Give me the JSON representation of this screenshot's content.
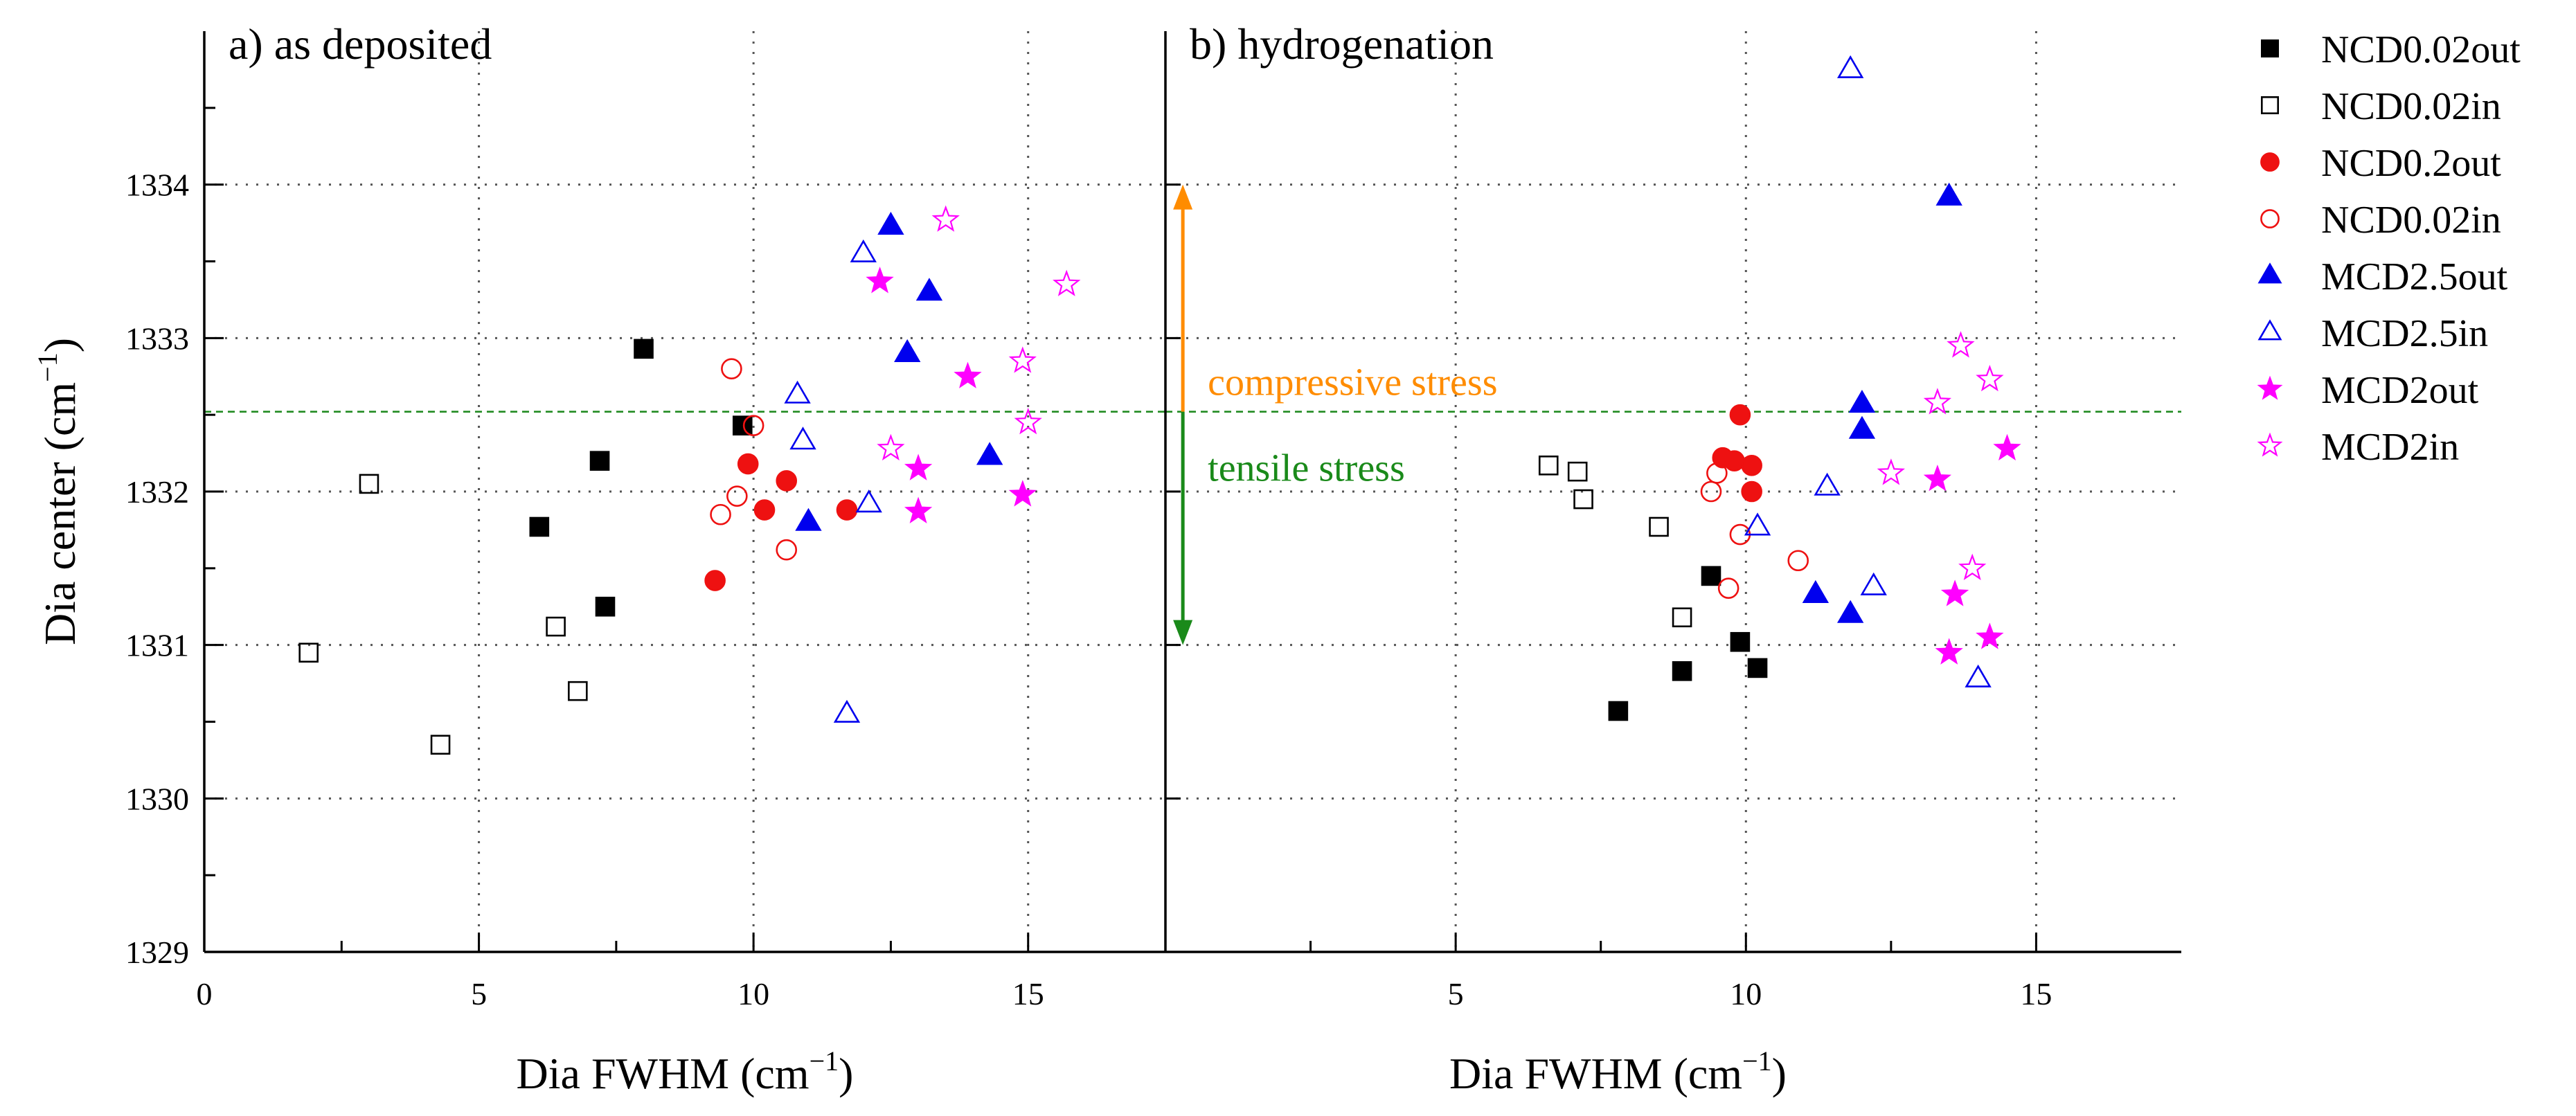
{
  "chart_data": [
    {
      "type": "scatter",
      "panel_label": "a) as deposited",
      "xlabel": "Dia FWHM (cm",
      "xlabel_sup": "−1",
      "xlabel_close": ")",
      "ylabel": "Dia center (cm",
      "ylabel_sup": "−1",
      "ylabel_close": ")",
      "xlim": [
        0,
        17.5
      ],
      "ylim": [
        1329,
        1335
      ],
      "xticks": [
        0,
        5,
        10,
        15
      ],
      "yticks": [
        1329,
        1330,
        1331,
        1332,
        1333,
        1334
      ],
      "grid": true,
      "reference_line": 1332.52,
      "series": [
        {
          "name": "NCD0.02out",
          "points": [
            [
              6.1,
              1331.77
            ],
            [
              7.2,
              1332.2
            ],
            [
              7.3,
              1331.25
            ],
            [
              8.0,
              1332.93
            ],
            [
              9.8,
              1332.43
            ]
          ]
        },
        {
          "name": "NCD0.02in",
          "points": [
            [
              1.9,
              1330.95
            ],
            [
              3.0,
              1332.05
            ],
            [
              4.3,
              1330.35
            ],
            [
              6.4,
              1331.12
            ],
            [
              6.8,
              1330.7
            ]
          ]
        },
        {
          "name": "NCD0.2out",
          "points": [
            [
              9.3,
              1331.42
            ],
            [
              9.9,
              1332.18
            ],
            [
              10.2,
              1331.88
            ],
            [
              10.6,
              1332.07
            ],
            [
              11.7,
              1331.88
            ]
          ]
        },
        {
          "name": "NCD0.02in",
          "points": [
            [
              9.4,
              1331.85
            ],
            [
              9.6,
              1332.8
            ],
            [
              9.7,
              1331.97
            ],
            [
              10.0,
              1332.43
            ],
            [
              10.6,
              1331.62
            ]
          ]
        },
        {
          "name": "MCD2.5out",
          "points": [
            [
              11.0,
              1331.8
            ],
            [
              12.5,
              1333.73
            ],
            [
              12.8,
              1332.9
            ],
            [
              13.2,
              1333.3
            ],
            [
              14.3,
              1332.23
            ]
          ]
        },
        {
          "name": "MCD2.5in",
          "points": [
            [
              10.8,
              1332.63
            ],
            [
              10.9,
              1332.33
            ],
            [
              11.7,
              1330.55
            ],
            [
              12.0,
              1333.55
            ],
            [
              12.1,
              1331.92
            ]
          ]
        },
        {
          "name": "MCD2out",
          "points": [
            [
              12.3,
              1333.37
            ],
            [
              13.0,
              1332.15
            ],
            [
              13.0,
              1331.87
            ],
            [
              13.9,
              1332.75
            ],
            [
              14.9,
              1331.98
            ]
          ]
        },
        {
          "name": "MCD2in",
          "points": [
            [
              12.5,
              1332.28
            ],
            [
              13.5,
              1333.77
            ],
            [
              14.9,
              1332.85
            ],
            [
              15.0,
              1332.45
            ],
            [
              15.7,
              1333.35
            ]
          ]
        }
      ]
    },
    {
      "type": "scatter",
      "panel_label": "b) hydrogenation",
      "xlabel": "Dia FWHM (cm",
      "xlabel_sup": "−1",
      "xlabel_close": ")",
      "xlim": [
        0,
        17.5
      ],
      "ylim": [
        1329,
        1335
      ],
      "xticks": [
        5,
        10,
        15
      ],
      "grid": true,
      "reference_line": 1332.52,
      "annotations": {
        "compressive": "compressive stress",
        "tensile": "tensile stress",
        "arrow_range": [
          1331.0,
          1334.0
        ],
        "arrow_x": 0.3
      },
      "series": [
        {
          "name": "NCD0.02out",
          "points": [
            [
              7.8,
              1330.57
            ],
            [
              8.9,
              1330.83
            ],
            [
              9.4,
              1331.45
            ],
            [
              9.9,
              1331.02
            ],
            [
              10.2,
              1330.85
            ]
          ]
        },
        {
          "name": "NCD0.02in",
          "points": [
            [
              6.6,
              1332.17
            ],
            [
              7.1,
              1332.13
            ],
            [
              7.2,
              1331.95
            ],
            [
              8.5,
              1331.77
            ],
            [
              8.9,
              1331.18
            ]
          ]
        },
        {
          "name": "NCD0.2out",
          "points": [
            [
              9.6,
              1332.22
            ],
            [
              9.8,
              1332.2
            ],
            [
              9.9,
              1332.5
            ],
            [
              10.1,
              1332.17
            ],
            [
              10.1,
              1332.0
            ]
          ]
        },
        {
          "name": "NCD0.02in",
          "points": [
            [
              9.4,
              1332.0
            ],
            [
              9.5,
              1332.12
            ],
            [
              9.7,
              1331.37
            ],
            [
              9.9,
              1331.72
            ],
            [
              10.9,
              1331.55
            ]
          ]
        },
        {
          "name": "MCD2.5out",
          "points": [
            [
              11.2,
              1331.33
            ],
            [
              11.8,
              1331.2
            ],
            [
              12.0,
              1332.57
            ],
            [
              12.0,
              1332.4
            ],
            [
              13.5,
              1333.92
            ]
          ]
        },
        {
          "name": "MCD2.5in",
          "points": [
            [
              10.2,
              1331.77
            ],
            [
              11.4,
              1332.03
            ],
            [
              11.8,
              1334.75
            ],
            [
              12.2,
              1331.38
            ],
            [
              14.0,
              1330.78
            ]
          ]
        },
        {
          "name": "MCD2out",
          "points": [
            [
              13.3,
              1332.08
            ],
            [
              13.5,
              1330.95
            ],
            [
              13.6,
              1331.33
            ],
            [
              14.2,
              1331.05
            ],
            [
              14.5,
              1332.28
            ]
          ]
        },
        {
          "name": "MCD2in",
          "points": [
            [
              12.5,
              1332.12
            ],
            [
              13.3,
              1332.58
            ],
            [
              13.7,
              1332.95
            ],
            [
              13.9,
              1331.5
            ],
            [
              14.2,
              1332.73
            ]
          ]
        }
      ]
    }
  ],
  "legend": [
    {
      "label": "NCD0.02out",
      "marker": "square",
      "filled": true,
      "color": "#000000"
    },
    {
      "label": "NCD0.02in",
      "marker": "square",
      "filled": false,
      "color": "#000000"
    },
    {
      "label": "NCD0.2out",
      "marker": "circle",
      "filled": true,
      "color": "#ee1111"
    },
    {
      "label": "NCD0.02in",
      "marker": "circle",
      "filled": false,
      "color": "#ee1111"
    },
    {
      "label": "MCD2.5out",
      "marker": "triangle",
      "filled": true,
      "color": "#0000ee"
    },
    {
      "label": "MCD2.5in",
      "marker": "triangle",
      "filled": false,
      "color": "#0000ee"
    },
    {
      "label": "MCD2out",
      "marker": "star",
      "filled": true,
      "color": "#ff00ff"
    },
    {
      "label": "MCD2in",
      "marker": "star",
      "filled": false,
      "color": "#ff00ff"
    }
  ],
  "colors": {
    "reference_line": "#228b22",
    "compressive": "#ff8c00",
    "tensile": "#1a8a1a",
    "grid": "#555555"
  }
}
